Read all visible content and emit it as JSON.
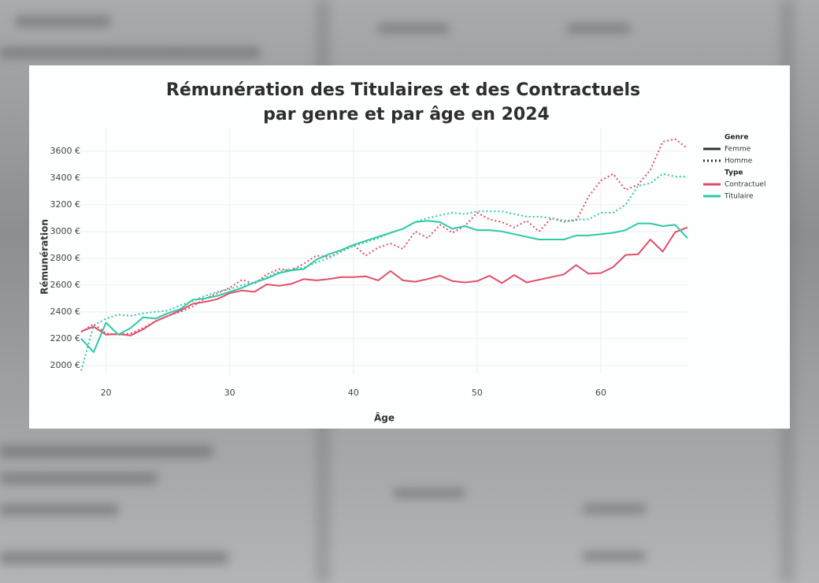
{
  "chart_data": {
    "type": "line",
    "title": [
      "Rémunération des Titulaires et des Contractuels",
      "par genre et par âge en 2024"
    ],
    "x_label": "Âge",
    "y_label": "Rémunération",
    "x": [
      18,
      19,
      20,
      21,
      22,
      23,
      24,
      25,
      26,
      27,
      28,
      29,
      30,
      31,
      32,
      33,
      34,
      35,
      36,
      37,
      38,
      39,
      40,
      41,
      42,
      43,
      44,
      45,
      46,
      47,
      48,
      49,
      50,
      51,
      52,
      53,
      54,
      55,
      56,
      57,
      58,
      59,
      60,
      61,
      62,
      63,
      64,
      65,
      66,
      67
    ],
    "xlim": [
      17.8,
      67
    ],
    "xticks": [
      20,
      30,
      40,
      50,
      60
    ],
    "ylim": [
      1935,
      3775
    ],
    "yticks": [
      {
        "value": 2000,
        "label": "2000 €"
      },
      {
        "value": 2200,
        "label": "2200 €"
      },
      {
        "value": 2400,
        "label": "2400 €"
      },
      {
        "value": 2600,
        "label": "2600 €"
      },
      {
        "value": 2800,
        "label": "2800 €"
      },
      {
        "value": 3000,
        "label": "3000 €"
      },
      {
        "value": 3200,
        "label": "3200 €"
      },
      {
        "value": 3400,
        "label": "3400 €"
      },
      {
        "value": 3600,
        "label": "3600 €"
      }
    ],
    "grid": true,
    "legend": [
      {
        "title": "Genre",
        "items": [
          {
            "label": "Femme",
            "dash": "solid"
          },
          {
            "label": "Homme",
            "dash": "dotted"
          }
        ]
      },
      {
        "title": "Type",
        "items": [
          {
            "label": "Contractuel",
            "color": "#e0506a"
          },
          {
            "label": "Titulaire",
            "color": "#2ec9a8"
          }
        ]
      }
    ],
    "series": [
      {
        "genre": "Homme",
        "kind": "Contractuel",
        "values": [
          2250,
          2310,
          2240,
          2230,
          2240,
          2280,
          2330,
          2370,
          2400,
          2440,
          2500,
          2540,
          2580,
          2640,
          2610,
          2680,
          2720,
          2710,
          2760,
          2820,
          2810,
          2850,
          2900,
          2820,
          2880,
          2910,
          2870,
          3000,
          2950,
          3050,
          2990,
          3040,
          3140,
          3090,
          3070,
          3030,
          3080,
          3000,
          3100,
          3080,
          3080,
          3260,
          3380,
          3430,
          3310,
          3350,
          3460,
          3670,
          3690,
          3620
        ]
      },
      {
        "genre": "Homme",
        "kind": "Titulaire",
        "values": [
          1960,
          2300,
          2350,
          2380,
          2370,
          2390,
          2400,
          2410,
          2450,
          2480,
          2520,
          2550,
          2570,
          2600,
          2620,
          2660,
          2700,
          2720,
          2730,
          2770,
          2800,
          2850,
          2890,
          2920,
          2950,
          2990,
          3020,
          3070,
          3100,
          3120,
          3140,
          3130,
          3150,
          3150,
          3150,
          3130,
          3110,
          3110,
          3100,
          3070,
          3090,
          3090,
          3140,
          3140,
          3200,
          3340,
          3360,
          3430,
          3410,
          3410
        ]
      },
      {
        "genre": "Femme",
        "kind": "Contractuel",
        "values": [
          2255,
          2290,
          2230,
          2235,
          2225,
          2270,
          2330,
          2370,
          2410,
          2460,
          2475,
          2495,
          2540,
          2560,
          2550,
          2605,
          2595,
          2610,
          2645,
          2635,
          2645,
          2660,
          2660,
          2665,
          2635,
          2705,
          2635,
          2625,
          2645,
          2670,
          2630,
          2620,
          2630,
          2670,
          2615,
          2675,
          2620,
          2640,
          2660,
          2680,
          2750,
          2685,
          2690,
          2735,
          2825,
          2830,
          2940,
          2850,
          2995,
          3030
        ]
      },
      {
        "genre": "Femme",
        "kind": "Titulaire",
        "values": [
          2200,
          2100,
          2320,
          2230,
          2280,
          2360,
          2350,
          2390,
          2420,
          2490,
          2500,
          2520,
          2550,
          2580,
          2620,
          2650,
          2690,
          2710,
          2720,
          2790,
          2830,
          2860,
          2900,
          2930,
          2960,
          2990,
          3020,
          3070,
          3080,
          3070,
          3020,
          3040,
          3010,
          3010,
          3000,
          2980,
          2960,
          2940,
          2940,
          2940,
          2970,
          2970,
          2980,
          2990,
          3010,
          3060,
          3060,
          3040,
          3050,
          2950
        ]
      }
    ]
  }
}
